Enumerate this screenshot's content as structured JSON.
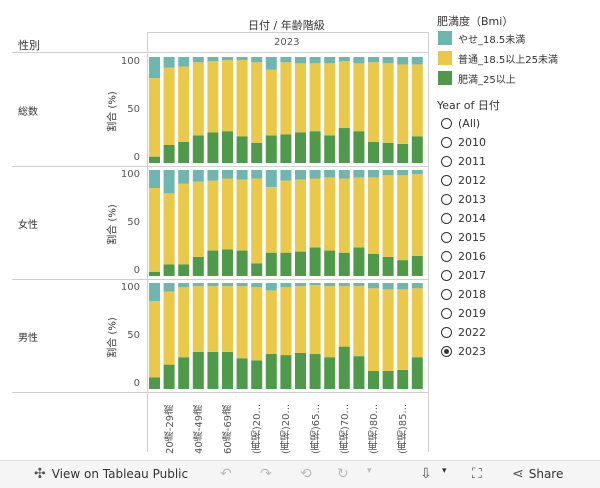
{
  "header": {
    "column_title": "日付 / 年齢階級",
    "year_label": "2023",
    "row_header": "性別"
  },
  "colors": {
    "thin": "#6db7b0",
    "normal": "#eac84a",
    "obese": "#4f9a4a"
  },
  "x_labels": [
    "20歳-29歳",
    "40歳-49歳",
    "60歳-69歳",
    "(再掲)20...",
    "(再掲)20...",
    "(再掲)65...",
    "(再掲)70...",
    "(再掲)80...",
    "(再掲)85..."
  ],
  "y_axis_label": "割合 (%)",
  "y_ticks": [
    "100",
    "50",
    "0"
  ],
  "chart_data": {
    "type": "bar",
    "stacked": true,
    "ylim": [
      0,
      100
    ],
    "ylabel": "割合 (%)",
    "series_names": [
      "肥満_25以上",
      "普通_18.5以上25未満",
      "やせ_18.5未満"
    ],
    "panels": [
      {
        "name": "総数",
        "label": "総数",
        "obese": [
          6,
          17,
          20,
          26,
          29,
          30,
          25,
          19,
          26,
          27,
          29,
          30,
          26,
          33,
          30,
          20,
          19,
          18,
          25
        ],
        "thin": [
          20,
          10,
          9,
          5,
          4,
          3,
          3,
          5,
          12,
          5,
          6,
          6,
          6,
          4,
          6,
          5,
          6,
          7,
          7
        ]
      },
      {
        "name": "女性",
        "label": "女性",
        "obese": [
          4,
          11,
          11,
          18,
          24,
          25,
          24,
          12,
          22,
          22,
          23,
          27,
          24,
          22,
          27,
          21,
          18,
          15,
          19
        ],
        "thin": [
          17,
          22,
          13,
          11,
          10,
          8,
          9,
          8,
          16,
          10,
          9,
          8,
          7,
          8,
          7,
          7,
          5,
          5,
          4
        ]
      },
      {
        "name": "男性",
        "label": "男性",
        "obese": [
          11,
          23,
          30,
          35,
          35,
          35,
          29,
          27,
          33,
          32,
          34,
          33,
          30,
          40,
          31,
          17,
          17,
          18,
          30
        ],
        "thin": [
          17,
          8,
          4,
          3,
          3,
          3,
          3,
          4,
          7,
          4,
          3,
          2,
          3,
          3,
          3,
          5,
          6,
          6,
          5
        ]
      }
    ]
  },
  "legend": {
    "title": "肥満度（Bmi）",
    "items": [
      {
        "label": "やせ_18.5未満",
        "color": "#6db7b0"
      },
      {
        "label": "普通_18.5以上25未満",
        "color": "#eac84a"
      },
      {
        "label": "肥満_25以上",
        "color": "#4f9a4a"
      }
    ]
  },
  "year_filter": {
    "title": "Year of 日付",
    "options": [
      "(All)",
      "2010",
      "2011",
      "2012",
      "2013",
      "2014",
      "2015",
      "2016",
      "2017",
      "2018",
      "2019",
      "2022",
      "2023"
    ],
    "selected": "2023"
  },
  "toolbar": {
    "view_label": "View on Tableau Public",
    "share_label": "Share"
  }
}
